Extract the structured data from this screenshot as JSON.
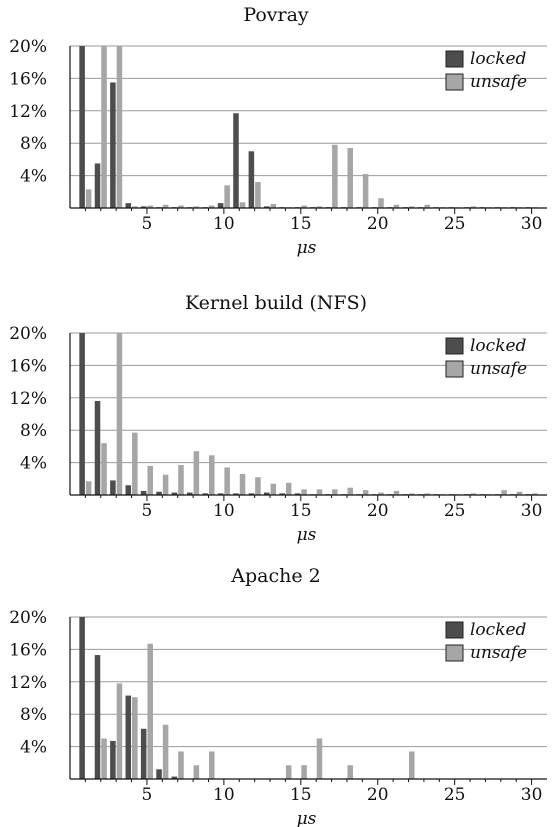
{
  "colors": {
    "locked": "#4d4d4d",
    "unsafe": "#a6a6a6",
    "grid": "#9a9a9a",
    "axis": "#111111"
  },
  "chart_data": [
    {
      "type": "bar",
      "title": "Povray",
      "xlabel": "μs",
      "ylabel": "",
      "ylim": [
        0,
        20
      ],
      "xlim": [
        0,
        31
      ],
      "x_ticks": [
        5,
        10,
        15,
        20,
        25,
        30
      ],
      "y_ticks": [
        4,
        8,
        12,
        16,
        20
      ],
      "y_tick_labels": [
        "4%",
        "8%",
        "12%",
        "16%",
        "20%"
      ],
      "legend_position": "top-right",
      "series": [
        {
          "name": "locked",
          "x": [
            1,
            2,
            3,
            4,
            5,
            6,
            7,
            8,
            9,
            10,
            11,
            12,
            13,
            14,
            15,
            16,
            17,
            18,
            19,
            20,
            21,
            22,
            23,
            24,
            25,
            26,
            27,
            28,
            29,
            30
          ],
          "values": [
            20,
            5.5,
            15.5,
            0.6,
            0.2,
            0.1,
            0.1,
            0.1,
            0.1,
            0.6,
            11.7,
            7.0,
            0.2,
            0.1,
            0.1,
            0.1,
            0.1,
            0.1,
            0.1,
            0.1,
            0.1,
            0.1,
            0.1,
            0.1,
            0.1,
            0.1,
            0.1,
            0.1,
            0.1,
            0.1
          ]
        },
        {
          "name": "unsafe",
          "x": [
            1,
            2,
            3,
            4,
            5,
            6,
            7,
            8,
            9,
            10,
            11,
            12,
            13,
            14,
            15,
            16,
            17,
            18,
            19,
            20,
            21,
            22,
            23,
            24,
            25,
            26,
            27,
            28,
            29,
            30
          ],
          "values": [
            2.3,
            20,
            20,
            0.2,
            0.3,
            0.4,
            0.3,
            0.2,
            0.3,
            2.8,
            0.7,
            3.2,
            0.5,
            0.1,
            0.3,
            0.2,
            7.8,
            7.4,
            4.2,
            1.2,
            0.4,
            0.2,
            0.4,
            0.1,
            0.1,
            0.2,
            0.1,
            0.1,
            0.1,
            0.1
          ]
        }
      ]
    },
    {
      "type": "bar",
      "title": "Kernel build (NFS)",
      "xlabel": "μs",
      "ylabel": "",
      "ylim": [
        0,
        20
      ],
      "xlim": [
        0,
        31
      ],
      "x_ticks": [
        5,
        10,
        15,
        20,
        25,
        30
      ],
      "y_ticks": [
        4,
        8,
        12,
        16,
        20
      ],
      "y_tick_labels": [
        "4%",
        "8%",
        "12%",
        "16%",
        "20%"
      ],
      "legend_position": "top-right",
      "series": [
        {
          "name": "locked",
          "x": [
            1,
            2,
            3,
            4,
            5,
            6,
            7,
            8,
            9,
            10,
            11,
            12,
            13,
            14,
            15,
            16,
            17,
            18,
            19,
            20,
            21,
            22,
            23,
            24,
            25,
            26,
            27,
            28,
            29,
            30
          ],
          "values": [
            20,
            11.6,
            1.8,
            1.2,
            0.5,
            0.4,
            0.3,
            0.3,
            0.2,
            0.2,
            0.2,
            0.2,
            0.3,
            0.2,
            0.2,
            0.1,
            0.1,
            0.1,
            0.1,
            0.1,
            0.1,
            0.1,
            0.1,
            0.1,
            0.1,
            0.1,
            0.1,
            0.1,
            0.1,
            0.1
          ]
        },
        {
          "name": "unsafe",
          "x": [
            1,
            2,
            3,
            4,
            5,
            6,
            7,
            8,
            9,
            10,
            11,
            12,
            13,
            14,
            15,
            16,
            17,
            18,
            19,
            20,
            21,
            22,
            23,
            24,
            25,
            26,
            27,
            28,
            29,
            30
          ],
          "values": [
            1.7,
            6.4,
            20,
            7.7,
            3.6,
            2.5,
            3.7,
            5.4,
            4.9,
            3.4,
            2.6,
            2.2,
            1.4,
            1.5,
            0.7,
            0.7,
            0.7,
            0.9,
            0.6,
            0.3,
            0.5,
            0.2,
            0.2,
            0.1,
            0.1,
            0.2,
            0.1,
            0.6,
            0.4,
            0.2
          ]
        }
      ]
    },
    {
      "type": "bar",
      "title": "Apache 2",
      "xlabel": "μs",
      "ylabel": "",
      "ylim": [
        0,
        20
      ],
      "xlim": [
        0,
        31
      ],
      "x_ticks": [
        5,
        10,
        15,
        20,
        25,
        30
      ],
      "y_ticks": [
        4,
        8,
        12,
        16,
        20
      ],
      "y_tick_labels": [
        "4%",
        "8%",
        "12%",
        "16%",
        "20%"
      ],
      "legend_position": "top-right",
      "series": [
        {
          "name": "locked",
          "x": [
            1,
            2,
            3,
            4,
            5,
            6,
            7,
            8,
            9,
            10,
            11,
            12,
            13,
            14,
            15,
            16,
            17,
            18,
            19,
            20,
            21,
            22,
            23,
            24,
            25,
            26,
            27,
            28,
            29,
            30
          ],
          "values": [
            20,
            15.3,
            4.7,
            10.3,
            6.2,
            1.2,
            0.3,
            0,
            0,
            0,
            0,
            0,
            0,
            0,
            0,
            0,
            0,
            0,
            0,
            0,
            0,
            0,
            0,
            0,
            0,
            0,
            0,
            0,
            0,
            0
          ]
        },
        {
          "name": "unsafe",
          "x": [
            1,
            2,
            3,
            4,
            5,
            6,
            7,
            8,
            9,
            10,
            11,
            12,
            13,
            14,
            15,
            16,
            17,
            18,
            19,
            20,
            21,
            22,
            23,
            24,
            25,
            26,
            27,
            28,
            29,
            30
          ],
          "values": [
            0,
            5.0,
            11.8,
            10.1,
            16.7,
            6.7,
            3.4,
            1.7,
            3.4,
            0,
            0,
            0,
            0,
            1.7,
            1.7,
            5.0,
            0,
            1.7,
            0,
            0,
            0,
            3.4,
            0,
            0,
            0,
            0,
            0,
            0,
            0,
            0
          ]
        }
      ]
    }
  ]
}
